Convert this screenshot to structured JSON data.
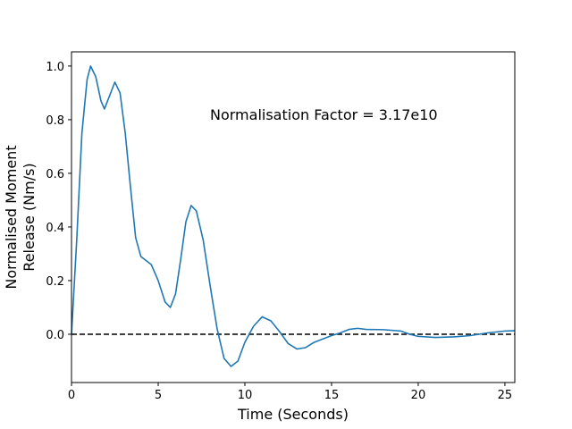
{
  "chart_data": {
    "type": "line",
    "xlabel": "Time (Seconds)",
    "ylabel": [
      "Normalised Moment",
      "Release (Nm/s)"
    ],
    "annotation": "Normalisation Factor = 3.17e10",
    "reference_line": 0,
    "xlim": [
      0,
      25.57
    ],
    "ylim": [
      -0.18,
      1.053
    ],
    "xticks": [
      0,
      5,
      10,
      15,
      20,
      25
    ],
    "yticks": [
      {
        "value": 0.0,
        "label": "0.0"
      },
      0.2,
      0.4,
      0.6,
      0.8,
      {
        "value": 1.0,
        "label": "1.0"
      }
    ],
    "series": [
      {
        "color": "#1f77b4",
        "x": [
          0,
          0.3,
          0.6,
          0.9,
          1.1,
          1.4,
          1.7,
          1.9,
          2.2,
          2.5,
          2.8,
          3.1,
          3.4,
          3.7,
          4.0,
          4.3,
          4.6,
          5.0,
          5.4,
          5.7,
          6.0,
          6.3,
          6.6,
          6.9,
          7.2,
          7.6,
          8.0,
          8.4,
          8.8,
          9.2,
          9.6,
          10.0,
          10.5,
          11.0,
          11.5,
          12.0,
          12.5,
          13.0,
          13.5,
          14.0,
          15.0,
          15.5,
          16.0,
          16.5,
          17.0,
          18.0,
          19.0,
          19.5,
          20.0,
          21.0,
          22.0,
          23.0,
          24.0,
          25.0,
          25.57
        ],
        "values": [
          0.0,
          0.35,
          0.75,
          0.95,
          1.0,
          0.96,
          0.87,
          0.84,
          0.89,
          0.94,
          0.9,
          0.75,
          0.55,
          0.36,
          0.29,
          0.275,
          0.26,
          0.2,
          0.12,
          0.1,
          0.15,
          0.28,
          0.42,
          0.48,
          0.46,
          0.35,
          0.18,
          0.02,
          -0.09,
          -0.12,
          -0.1,
          -0.03,
          0.03,
          0.065,
          0.05,
          0.01,
          -0.035,
          -0.055,
          -0.05,
          -0.03,
          -0.005,
          0.005,
          0.018,
          0.022,
          0.018,
          0.017,
          0.012,
          0.0,
          -0.008,
          -0.012,
          -0.01,
          -0.005,
          0.005,
          0.012,
          0.013
        ]
      }
    ]
  }
}
